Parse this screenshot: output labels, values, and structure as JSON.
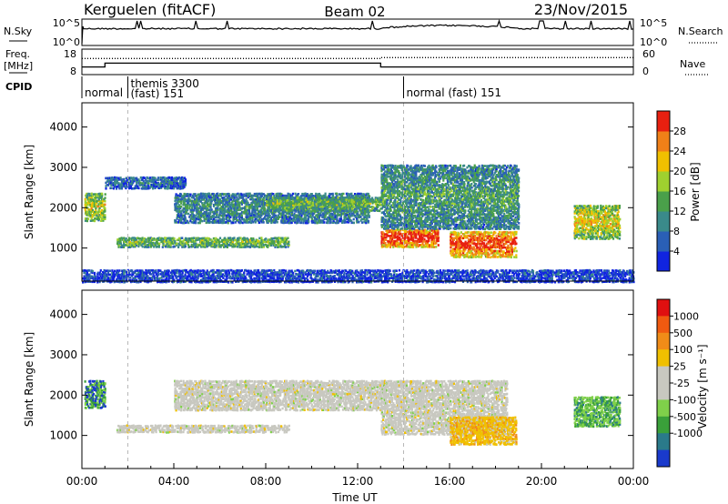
{
  "header": {
    "site": "Kerguelen (fitACF)",
    "beam": "Beam 02",
    "date": "23/Nov/2015"
  },
  "chart_data": [
    {
      "type": "line",
      "panel": "noise",
      "left_label": "N.Sky",
      "right_label": "N.Search",
      "y_ticks_left": [
        "10^5",
        "10^0"
      ],
      "y_ticks_right": [
        "10^5",
        "10^0"
      ]
    },
    {
      "type": "line",
      "panel": "frequency",
      "left_label": "Freq.",
      "left_unit": "[MHz]",
      "left_ticks": [
        "18",
        "8"
      ],
      "right_label": "Nave",
      "right_ticks": [
        "60",
        "0"
      ],
      "freq_series": [
        {
          "x": 0.0,
          "y": 11.0
        },
        {
          "x": 1.0,
          "y": 11.0
        },
        {
          "x": 1.0,
          "y": 12.5
        },
        {
          "x": 13.0,
          "y": 12.5
        },
        {
          "x": 13.0,
          "y": 11.0
        },
        {
          "x": 24.0,
          "y": 11.0
        }
      ],
      "nave_series": [
        {
          "x": 0.0,
          "y": 38
        },
        {
          "x": 13.0,
          "y": 38
        },
        {
          "x": 13.0,
          "y": 40
        },
        {
          "x": 24.0,
          "y": 40
        }
      ]
    },
    {
      "type": "table",
      "panel": "cpid",
      "label": "CPID",
      "segments": [
        {
          "start": 0.0,
          "lines": [
            "normal"
          ]
        },
        {
          "start": 2.0,
          "lines": [
            "themis 3300",
            "(fast)  151"
          ]
        },
        {
          "start": 14.0,
          "lines": [
            "normal (fast)  151"
          ]
        }
      ]
    },
    {
      "type": "heatmap",
      "panel": "power",
      "ylabel": "Slant Range [km]",
      "y_ticks": [
        1000,
        2000,
        3000,
        4000
      ],
      "ylim": [
        180,
        4600
      ],
      "colorbar_label": "Power [dB]",
      "colorbar_ticks": [
        4,
        8,
        12,
        16,
        20,
        24,
        28
      ],
      "colorbar_range": [
        0,
        32
      ],
      "colors": [
        "#1024e0",
        "#2a5fb6",
        "#3a8a8a",
        "#4aa04a",
        "#9fd02f",
        "#f0c000",
        "#f08018",
        "#e82010"
      ],
      "echo_bands": [
        {
          "t0": 0.1,
          "t1": 1.0,
          "r0": 1700,
          "r1": 2400,
          "level": 0.55
        },
        {
          "t0": 1.0,
          "t1": 4.5,
          "r0": 2500,
          "r1": 2800,
          "level": 0.2
        },
        {
          "t0": 1.5,
          "t1": 9.0,
          "r0": 1050,
          "r1": 1300,
          "level": 0.45
        },
        {
          "t0": 4.0,
          "t1": 12.5,
          "r0": 1650,
          "r1": 2400,
          "level": 0.3
        },
        {
          "t0": 8.0,
          "t1": 13.0,
          "r0": 1950,
          "r1": 2300,
          "level": 0.45
        },
        {
          "t0": 13.0,
          "t1": 15.5,
          "r0": 1050,
          "r1": 1500,
          "level": 0.9
        },
        {
          "t0": 13.0,
          "t1": 19.0,
          "r0": 1500,
          "r1": 3100,
          "level": 0.35
        },
        {
          "t0": 16.0,
          "t1": 18.9,
          "r0": 800,
          "r1": 1450,
          "level": 0.85
        },
        {
          "t0": 21.4,
          "t1": 23.4,
          "r0": 1250,
          "r1": 2100,
          "level": 0.6
        },
        {
          "t0": 0.0,
          "t1": 24.0,
          "r0": 180,
          "r1": 500,
          "level": 0.12
        }
      ]
    },
    {
      "type": "heatmap",
      "panel": "velocity",
      "ylabel": "Slant Range [km]",
      "y_ticks": [
        1000,
        2000,
        3000,
        4000
      ],
      "ylim": [
        180,
        4600
      ],
      "x_ticks": [
        "00:00",
        "04:00",
        "08:00",
        "12:00",
        "16:00",
        "20:00",
        "00:00"
      ],
      "xlim": [
        0,
        24
      ],
      "xlabel": "Time UT",
      "colorbar_label": "Velocity [m s⁻¹]",
      "colorbar_ticks": [
        1000,
        500,
        100,
        25,
        -25,
        -100,
        -500,
        -1000
      ],
      "colorbar_range": [
        -1200,
        1200
      ],
      "colors": [
        "#e01010",
        "#f05a10",
        "#f08c18",
        "#f0c000",
        "#c8c8c0",
        "#c8c8c0",
        "#7fd04a",
        "#3aa03a",
        "#2a7a8a",
        "#1a3acc"
      ],
      "echo_bands": [
        {
          "t0": 0.1,
          "t1": 1.0,
          "r0": 1700,
          "r1": 2400,
          "kind": "blue"
        },
        {
          "t0": 1.5,
          "t1": 9.0,
          "r0": 1100,
          "r1": 1300,
          "kind": "gray"
        },
        {
          "t0": 4.0,
          "t1": 13.0,
          "r0": 1650,
          "r1": 2400,
          "kind": "gray"
        },
        {
          "t0": 13.0,
          "t1": 18.5,
          "r0": 1050,
          "r1": 2400,
          "kind": "gray"
        },
        {
          "t0": 16.0,
          "t1": 18.9,
          "r0": 800,
          "r1": 1500,
          "kind": "orange"
        },
        {
          "t0": 21.4,
          "t1": 23.4,
          "r0": 1250,
          "r1": 2000,
          "kind": "green"
        }
      ]
    }
  ]
}
